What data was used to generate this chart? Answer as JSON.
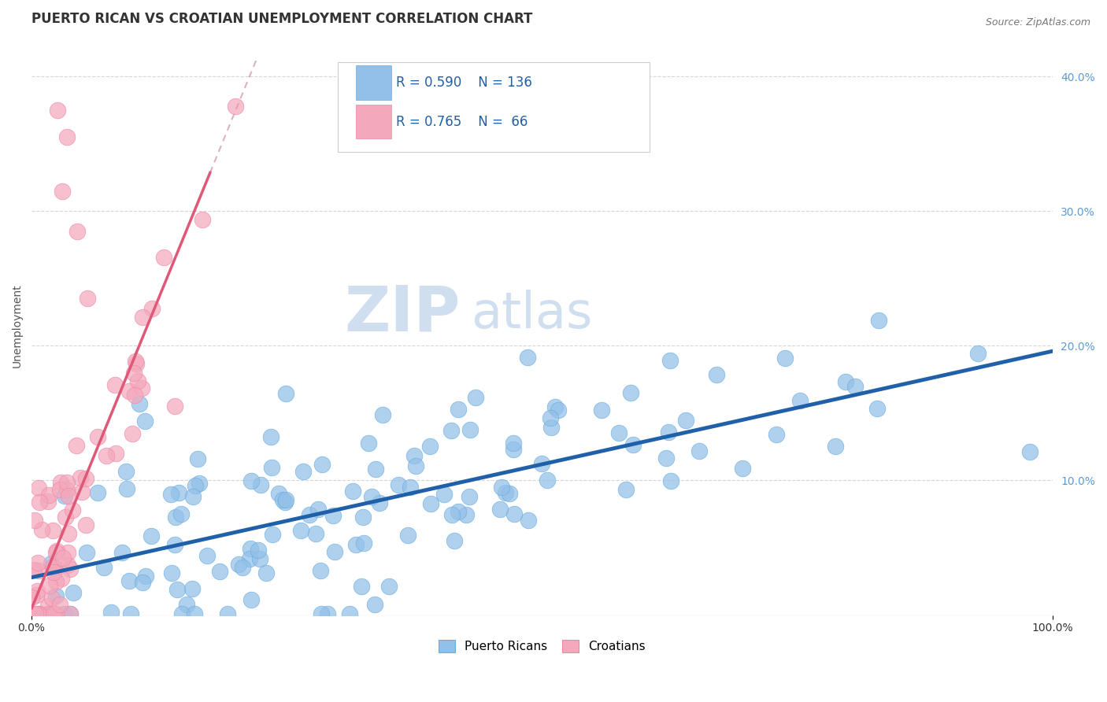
{
  "title": "PUERTO RICAN VS CROATIAN UNEMPLOYMENT CORRELATION CHART",
  "source_text": "Source: ZipAtlas.com",
  "ylabel": "Unemployment",
  "xlim": [
    0,
    1
  ],
  "ylim": [
    0,
    0.43
  ],
  "yticks_right": [
    0.1,
    0.2,
    0.3,
    0.4
  ],
  "ytick_labels_right": [
    "10.0%",
    "20.0%",
    "30.0%",
    "40.0%"
  ],
  "grid_color": "#cccccc",
  "background_color": "#ffffff",
  "blue_color": "#92c0e8",
  "pink_color": "#f4a8bb",
  "blue_edge_color": "#6aaee0",
  "pink_edge_color": "#ee88a8",
  "blue_line_color": "#2060a8",
  "pink_line_color": "#e05878",
  "pink_dashed_color": "#d0a0b0",
  "watermark_zip": "ZIP",
  "watermark_atlas": "atlas",
  "watermark_color": "#d0dff0",
  "legend_r_blue": "R = 0.590",
  "legend_n_blue": "N = 136",
  "legend_r_pink": "R = 0.765",
  "legend_n_pink": "N =  66",
  "legend_label_blue": "Puerto Ricans",
  "legend_label_pink": "Croatians",
  "title_fontsize": 12,
  "axis_label_fontsize": 10,
  "tick_fontsize": 10,
  "legend_fontsize": 12,
  "seed": 42,
  "blue_n": 136,
  "pink_n": 66,
  "blue_intercept": 0.028,
  "blue_slope": 0.168,
  "pink_intercept": 0.005,
  "pink_slope": 1.85
}
